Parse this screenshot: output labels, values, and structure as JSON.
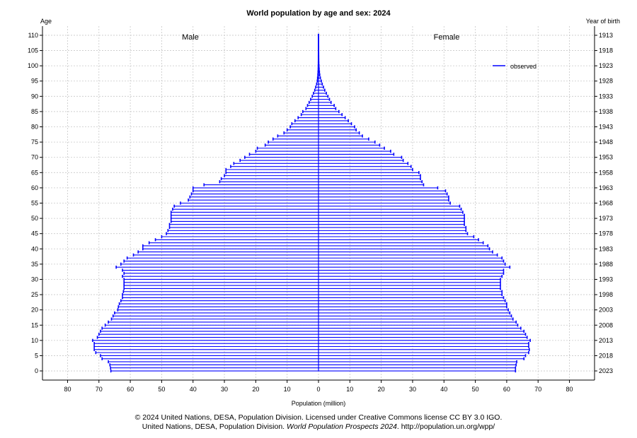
{
  "chart_data": {
    "type": "population_pyramid",
    "title": "World population by age and sex: 2024",
    "left_axis_title": "Age",
    "right_axis_title": "Year of birth",
    "xlabel": "Population (million)",
    "left_group_label": "Male",
    "right_group_label": "Female",
    "legend": {
      "label": "observed",
      "placement": "top-right",
      "color": "#0000ff"
    },
    "xlim": [
      -88,
      88
    ],
    "ylim": [
      -3,
      113
    ],
    "grid": true,
    "x_ticks": [
      -80,
      -70,
      -60,
      -50,
      -40,
      -30,
      -20,
      -10,
      0,
      10,
      20,
      30,
      40,
      50,
      60,
      70,
      80
    ],
    "x_tick_labels": [
      "80",
      "70",
      "60",
      "50",
      "40",
      "30",
      "20",
      "10",
      "0",
      "10",
      "20",
      "30",
      "40",
      "50",
      "60",
      "70",
      "80"
    ],
    "y_ticks": [
      0,
      5,
      10,
      15,
      20,
      25,
      30,
      35,
      40,
      45,
      50,
      55,
      60,
      65,
      70,
      75,
      80,
      85,
      90,
      95,
      100,
      105,
      110
    ],
    "y_tick_labels": [
      "0",
      "5",
      "10",
      "15",
      "20",
      "25",
      "30",
      "35",
      "40",
      "45",
      "50",
      "55",
      "60",
      "65",
      "70",
      "75",
      "80",
      "85",
      "90",
      "95",
      "100",
      "105",
      "110"
    ],
    "right_tick_labels": [
      "2023",
      "2018",
      "2013",
      "2008",
      "2003",
      "1998",
      "1993",
      "1988",
      "1983",
      "1978",
      "1973",
      "1968",
      "1963",
      "1958",
      "1953",
      "1948",
      "1943",
      "1938",
      "1933",
      "1928",
      "1923",
      "1918",
      "1913"
    ],
    "bar_color": "#0000ff",
    "ages": [
      0,
      1,
      2,
      3,
      4,
      5,
      6,
      7,
      8,
      9,
      10,
      11,
      12,
      13,
      14,
      15,
      16,
      17,
      18,
      19,
      20,
      21,
      22,
      23,
      24,
      25,
      26,
      27,
      28,
      29,
      30,
      31,
      32,
      33,
      34,
      35,
      36,
      37,
      38,
      39,
      40,
      41,
      42,
      43,
      44,
      45,
      46,
      47,
      48,
      49,
      50,
      51,
      52,
      53,
      54,
      55,
      56,
      57,
      58,
      59,
      60,
      61,
      62,
      63,
      64,
      65,
      66,
      67,
      68,
      69,
      70,
      71,
      72,
      73,
      74,
      75,
      76,
      77,
      78,
      79,
      80,
      81,
      82,
      83,
      84,
      85,
      86,
      87,
      88,
      89,
      90,
      91,
      92,
      93,
      94,
      95,
      96,
      97,
      98,
      99,
      100,
      101,
      102,
      103,
      104,
      105,
      106,
      107,
      108,
      109,
      110
    ],
    "series": [
      {
        "name": "Male",
        "values": [
          66.2,
          66.3,
          66.5,
          67.0,
          69.0,
          69.5,
          71.0,
          71.5,
          71.5,
          71.5,
          72.0,
          70.5,
          70.0,
          69.5,
          69.0,
          68.0,
          67.0,
          66.0,
          65.5,
          65.0,
          64.0,
          63.8,
          63.5,
          63.0,
          62.5,
          62.5,
          62.2,
          62.0,
          62.0,
          62.0,
          62.0,
          62.5,
          62.0,
          62.5,
          64.5,
          63.0,
          62.0,
          61.0,
          59.0,
          57.5,
          56.0,
          56.0,
          54.0,
          52.0,
          50.0,
          48.5,
          48.0,
          47.5,
          47.5,
          47.0,
          47.0,
          47.0,
          47.0,
          46.5,
          46.0,
          44.0,
          41.5,
          41.0,
          40.5,
          40.0,
          40.0,
          36.5,
          31.5,
          31.0,
          30.0,
          29.5,
          29.5,
          28.0,
          27.0,
          25.0,
          23.5,
          22.0,
          20.0,
          19.5,
          17.0,
          16.0,
          14.5,
          13.0,
          11.0,
          10.0,
          9.0,
          8.5,
          7.5,
          6.5,
          5.5,
          5.0,
          4.0,
          3.5,
          3.0,
          2.5,
          2.0,
          1.6,
          1.2,
          0.9,
          0.6,
          0.4,
          0.3,
          0.2,
          0.15,
          0.1,
          0.08,
          0.06,
          0.05,
          0.05,
          0.04,
          0.04,
          0.03,
          0.03,
          0.02,
          0.02,
          0.02
        ]
      },
      {
        "name": "Female",
        "values": [
          62.8,
          62.8,
          63.0,
          63.2,
          65.5,
          66.0,
          67.0,
          67.2,
          67.0,
          67.0,
          67.5,
          66.5,
          66.0,
          65.5,
          64.5,
          63.5,
          63.0,
          62.0,
          61.5,
          61.0,
          60.5,
          60.0,
          60.0,
          59.5,
          59.0,
          58.5,
          58.5,
          58.0,
          58.0,
          58.0,
          58.0,
          58.5,
          59.0,
          59.0,
          61.0,
          59.5,
          59.0,
          58.5,
          57.0,
          55.5,
          54.5,
          54.0,
          52.5,
          51.0,
          49.5,
          47.5,
          47.0,
          47.0,
          46.5,
          46.5,
          46.5,
          46.5,
          46.0,
          45.5,
          45.0,
          42.0,
          41.5,
          41.5,
          41.0,
          40.5,
          38.0,
          33.5,
          33.0,
          32.5,
          32.5,
          32.0,
          30.0,
          29.5,
          28.5,
          27.0,
          26.5,
          24.0,
          23.0,
          21.0,
          19.5,
          18.0,
          16.0,
          14.0,
          13.0,
          12.0,
          11.5,
          10.5,
          9.5,
          8.5,
          7.5,
          6.5,
          5.5,
          5.0,
          4.0,
          3.5,
          3.0,
          2.5,
          2.0,
          1.6,
          1.2,
          0.9,
          0.6,
          0.4,
          0.3,
          0.2,
          0.15,
          0.1,
          0.08,
          0.07,
          0.06,
          0.05,
          0.05,
          0.04,
          0.04,
          0.03,
          0.03
        ]
      }
    ]
  },
  "footer": {
    "line1": "© 2024 United Nations, DESA, Population Division. Licensed under Creative Commons license CC BY 3.0 IGO.",
    "line2_prefix": "United Nations, DESA, Population Division. ",
    "line2_italic": "World Population Prospects 2024",
    "line2_suffix": ". http://population.un.org/wpp/"
  }
}
